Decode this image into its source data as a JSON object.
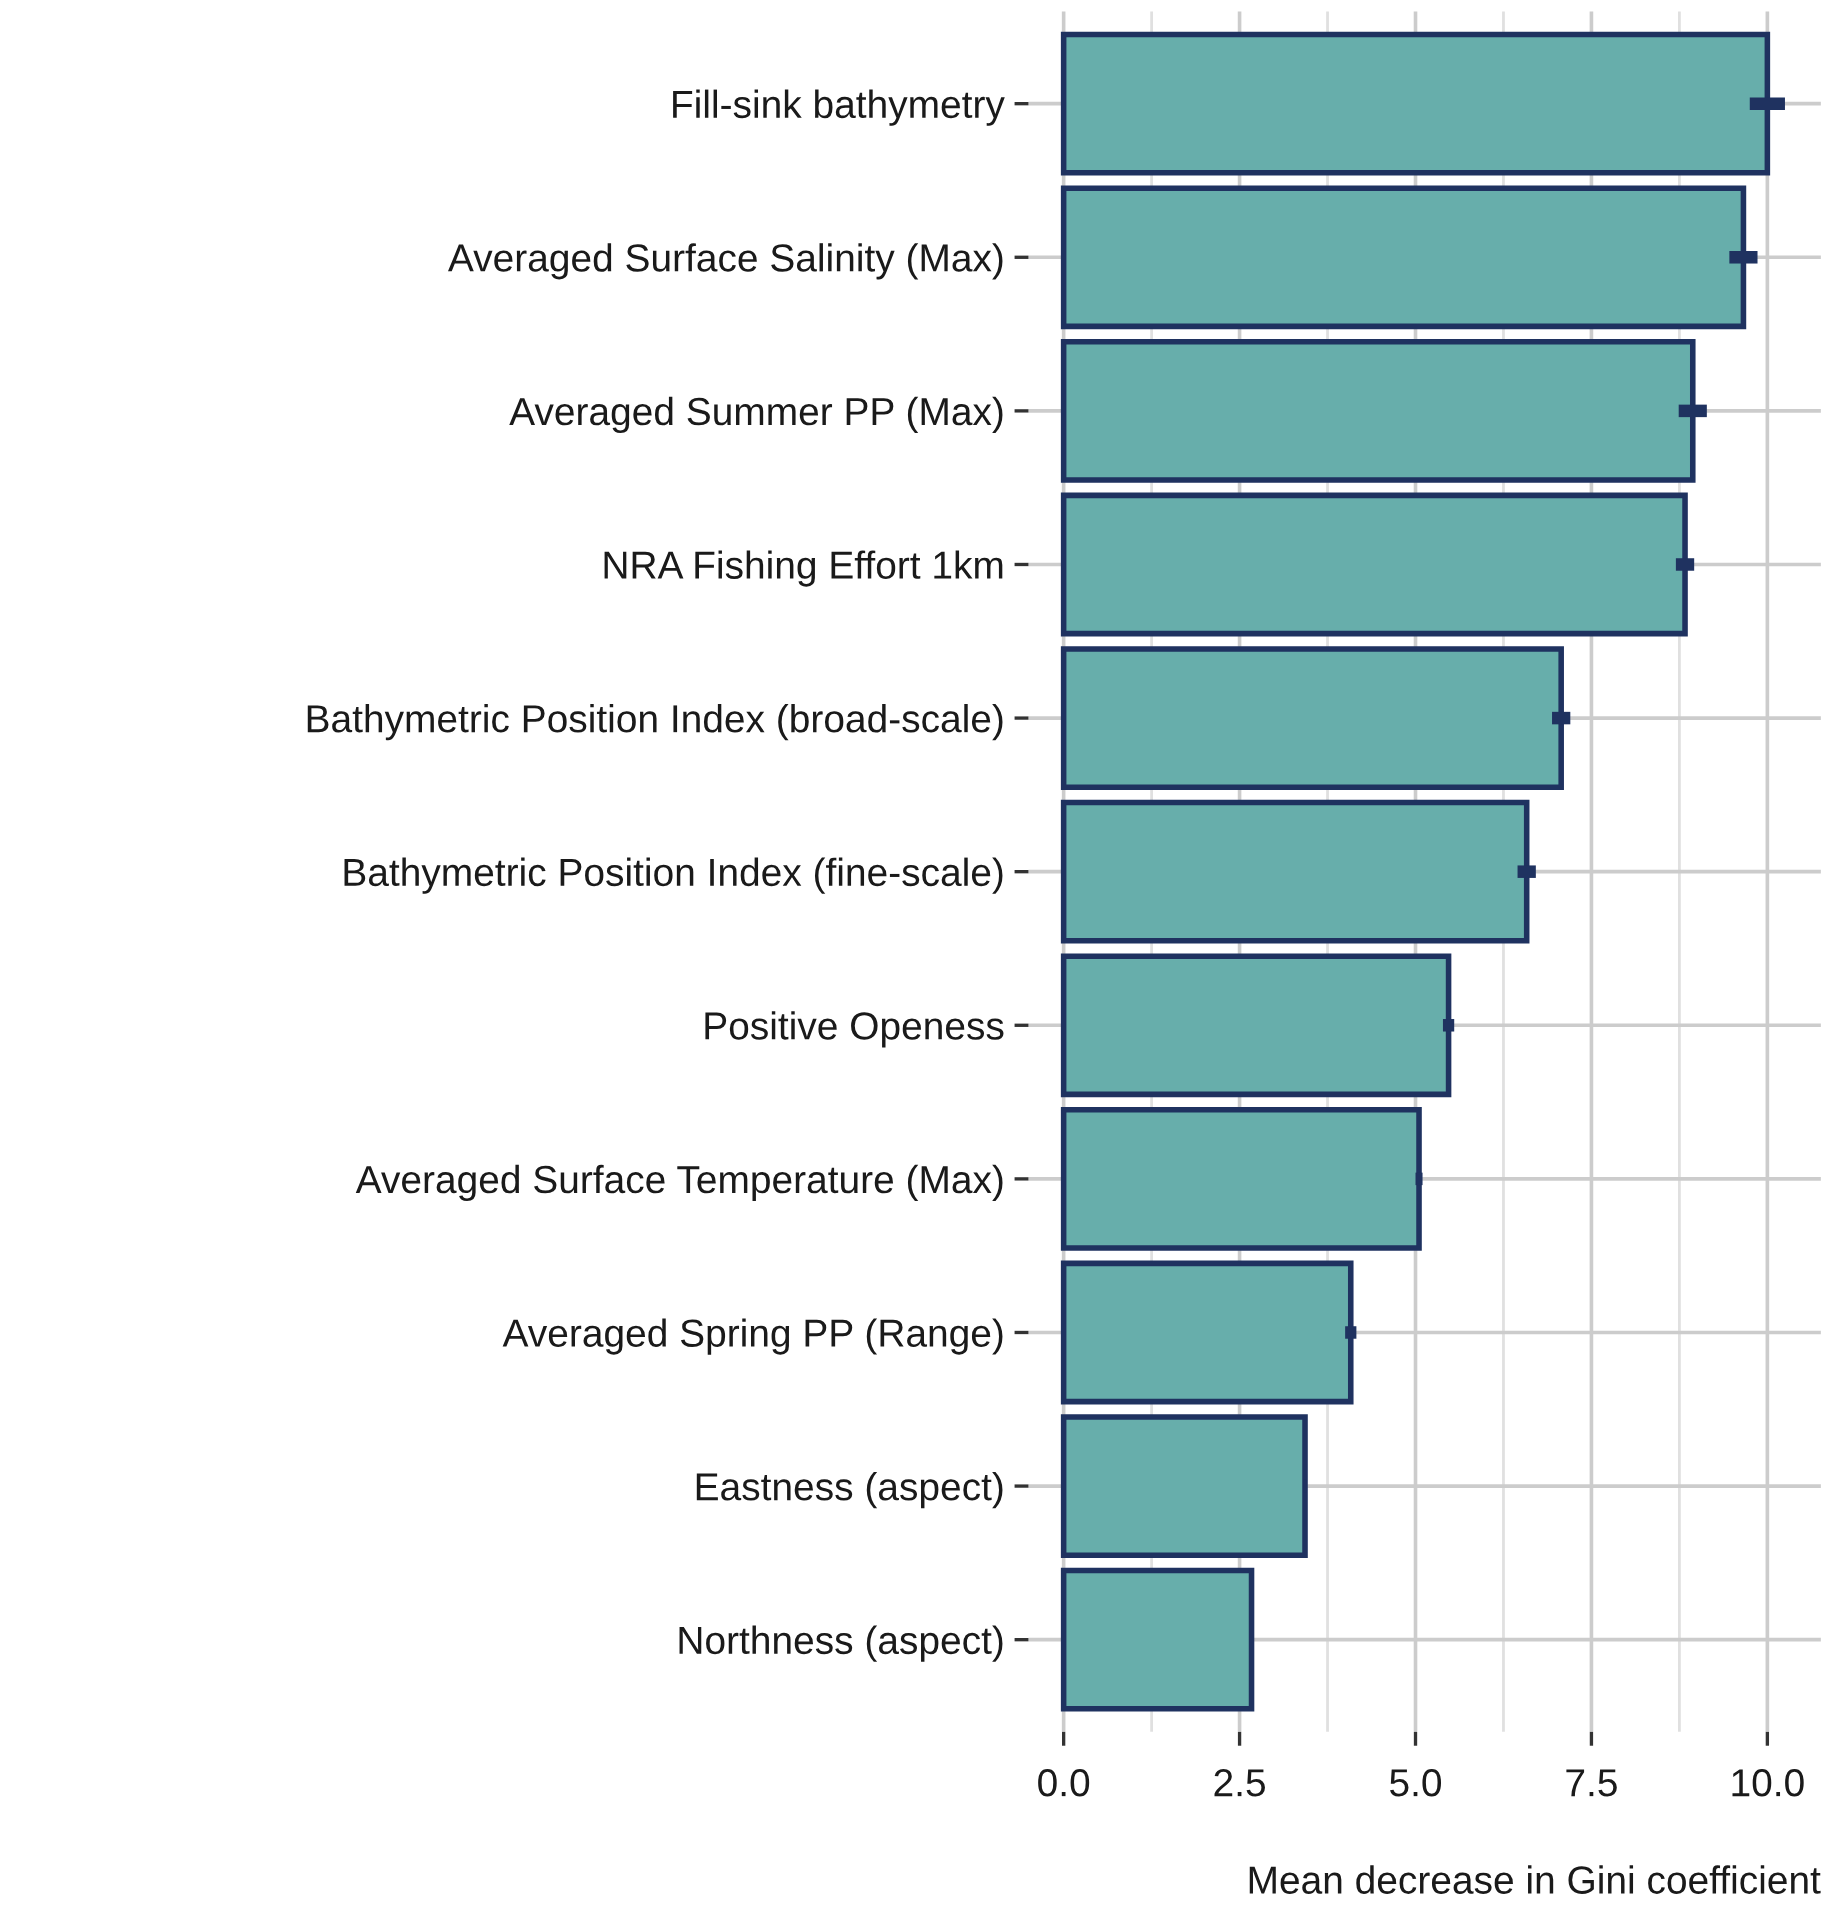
{
  "chart_data": {
    "type": "bar",
    "orientation": "horizontal",
    "xlabel": "Mean decrease in Gini coefficient",
    "categories": [
      "Fill-sink bathymetry",
      "Averaged Surface Salinity (Max)",
      "Averaged Summer PP (Max)",
      "NRA Fishing Effort 1km",
      "Bathymetric Position Index (broad-scale)",
      "Bathymetric Position Index (fine-scale)",
      "Positive Openess",
      "Averaged Surface Temperature (Max)",
      "Averaged Spring PP (Range)",
      "Eastness (aspect)",
      "Northness (aspect)"
    ],
    "values": [
      10.0,
      9.66,
      8.94,
      8.83,
      7.07,
      6.58,
      5.47,
      5.05,
      4.08,
      3.43,
      2.67
    ],
    "errors": [
      0.25,
      0.2,
      0.2,
      0.13,
      0.13,
      0.13,
      0.08,
      0.05,
      0.08,
      0.02,
      null
    ],
    "color": "#67aeab",
    "xlim": [
      -0.5,
      10.76
    ],
    "xticks": [
      {
        "value": 0,
        "label": "0.0"
      },
      2.5,
      {
        "value": 5,
        "label": "5.0"
      },
      7.5,
      {
        "value": 10,
        "label": "10.0"
      }
    ],
    "grid": true
  }
}
